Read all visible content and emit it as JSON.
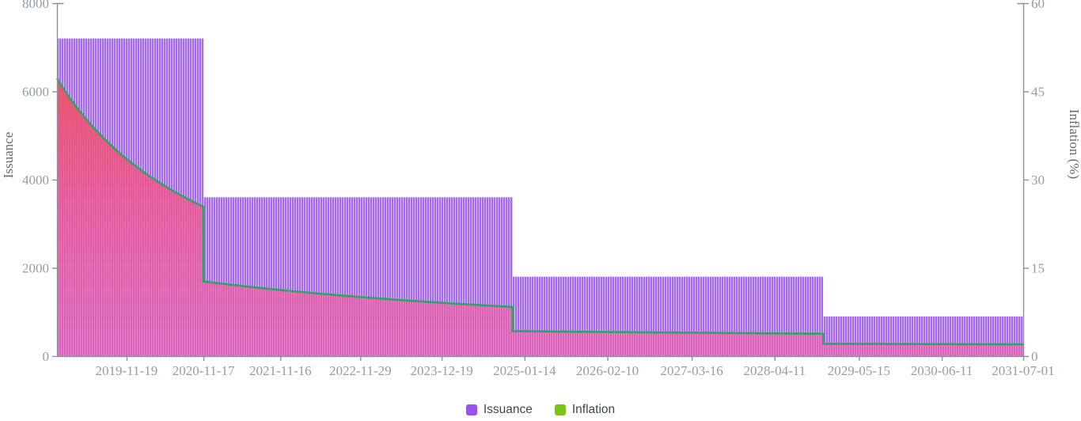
{
  "chart_data": {
    "type": "bar",
    "title": "",
    "grid": false,
    "legend_position": "bottom-center",
    "x_axis": {
      "domain": [
        "2018-12-25",
        "2031-07-05"
      ],
      "ticks": [
        "2019-11-19",
        "2020-11-17",
        "2021-11-16",
        "2022-11-29",
        "2023-12-19",
        "2025-01-14",
        "2026-02-10",
        "2027-03-16",
        "2028-04-11",
        "2029-05-15",
        "2030-06-11",
        "2031-07-01"
      ]
    },
    "y_axis_left": {
      "label": "Issuance",
      "range": [
        0,
        8000
      ],
      "ticks": [
        0,
        2000,
        4000,
        6000,
        8000
      ]
    },
    "y_axis_right": {
      "label": "Inflation (%)",
      "range": [
        0,
        60
      ],
      "ticks": [
        0,
        15,
        30,
        45,
        60
      ]
    },
    "series": [
      {
        "name": "Issuance",
        "type": "bar",
        "axis": "left",
        "steps": [
          {
            "from": "2018-12-25",
            "to": "2020-11-17",
            "value": 7200
          },
          {
            "from": "2020-11-17",
            "to": "2024-11-19",
            "value": 3600
          },
          {
            "from": "2024-11-19",
            "to": "2028-11-27",
            "value": 1800
          },
          {
            "from": "2028-11-27",
            "to": "2031-07-05",
            "value": 900
          }
        ]
      },
      {
        "name": "Inflation",
        "type": "area",
        "axis": "right",
        "keypoints": [
          {
            "date": "2018-12-25",
            "value": 47.2
          },
          {
            "date": "2020-11-17",
            "value": 25.4
          },
          {
            "date": "2020-11-17",
            "value": 12.7
          },
          {
            "date": "2024-11-19",
            "value": 8.35
          },
          {
            "date": "2024-11-19",
            "value": 4.25
          },
          {
            "date": "2028-11-27",
            "value": 3.8
          },
          {
            "date": "2028-11-27",
            "value": 2.1
          },
          {
            "date": "2031-07-05",
            "value": 2.0
          }
        ]
      }
    ],
    "legend": [
      {
        "label": "Issuance",
        "color": "#9b4ff0"
      },
      {
        "label": "Inflation",
        "color": "#7cc413"
      }
    ]
  },
  "colors": {
    "bar_stripe": "#a668f1",
    "bar_stripe_light": "#d7c3fa",
    "area_top": "#ec5263",
    "area_mid": "#f1568b",
    "area_bottom": "#f463a3",
    "line": "#2fa463",
    "axis": "#8b909c",
    "tick_text": "#949bab",
    "axis_title_text": "#646b78"
  }
}
